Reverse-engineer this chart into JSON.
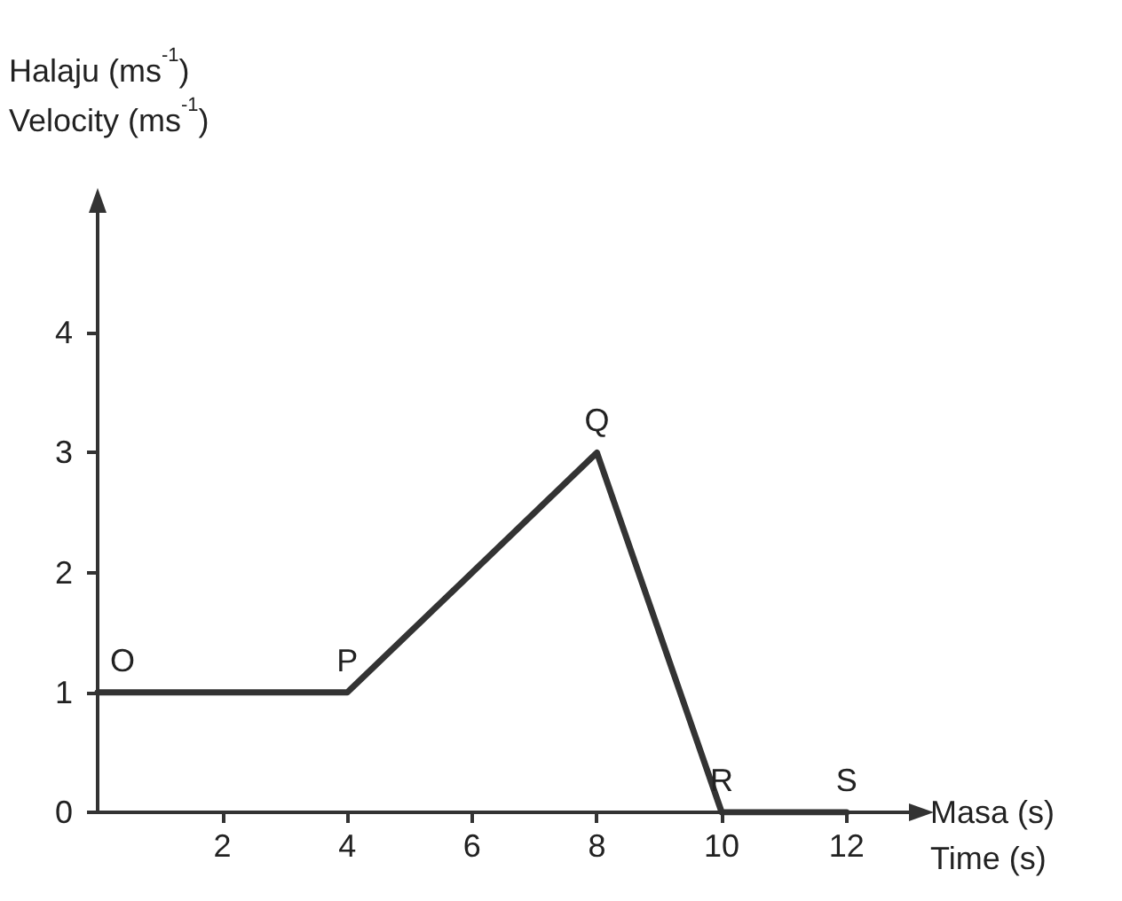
{
  "chart_data": {
    "type": "line",
    "xlabel": "Masa (s)\nTime (s)",
    "ylabel": "Halaju (ms$^{-1}$)\nVelocity (ms$^{-1}$)",
    "x": [
      0,
      4,
      8,
      10,
      12
    ],
    "values": [
      1,
      1,
      3,
      0,
      0
    ],
    "color": "#333333",
    "marker": "none",
    "line_style": "solid",
    "xlim": [
      0,
      13
    ],
    "xticks": [
      2,
      4,
      6,
      8,
      10,
      12
    ],
    "ylim": [
      0,
      5
    ],
    "yticks": [
      0,
      1,
      2,
      3,
      4
    ],
    "annotations": [
      {
        "text": "O",
        "x": 0,
        "y": 1
      },
      {
        "text": "P",
        "x": 4,
        "y": 1
      },
      {
        "text": "Q",
        "x": 8,
        "y": 3
      },
      {
        "text": "R",
        "x": 10,
        "y": 0
      },
      {
        "text": "S",
        "x": 12,
        "y": 0
      }
    ]
  }
}
